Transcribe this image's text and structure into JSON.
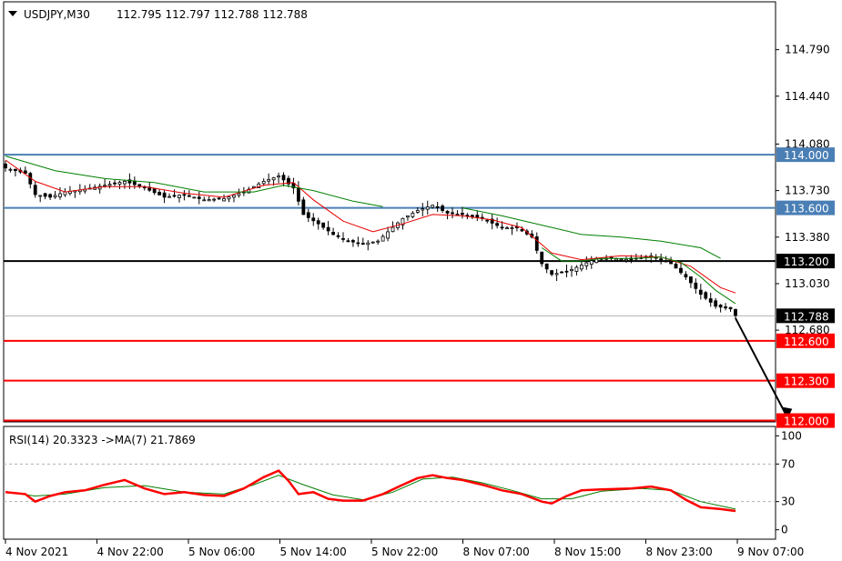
{
  "header": {
    "symbol": "USDJPY,M30",
    "ohlc": "112.795 112.797 112.788 112.788",
    "dropdown_icon": "triangle-down-icon"
  },
  "colors": {
    "background": "#ffffff",
    "candle": "#000000",
    "ma_fast": "#e60000",
    "ma_slow": "#008000",
    "support": "#ff0000",
    "resistance": "#4a7fb5",
    "pivot": "#000000",
    "rsi": "#ff0000",
    "rsi_ma": "#008000",
    "current_price_line": "#b0b0b0"
  },
  "chart_data": [
    {
      "type": "candlestick",
      "title": "USDJPY,M30",
      "x_ticks": [
        "4 Nov 2021",
        "4 Nov 22:00",
        "5 Nov 06:00",
        "5 Nov 14:00",
        "5 Nov 22:00",
        "8 Nov 07:00",
        "8 Nov 15:00",
        "8 Nov 23:00",
        "9 Nov 07:00"
      ],
      "y_ticks": [
        "114.790",
        "114.440",
        "114.080",
        "113.730",
        "113.380",
        "113.030",
        "112.680"
      ],
      "ylim": [
        111.99,
        115.15
      ],
      "current_price": {
        "value": 112.788,
        "label": "112.788"
      },
      "levels": [
        {
          "value": 114.0,
          "label": "114.000",
          "kind": "resistance"
        },
        {
          "value": 113.6,
          "label": "113.600",
          "kind": "resistance"
        },
        {
          "value": 113.2,
          "label": "113.200",
          "kind": "pivot"
        },
        {
          "value": 112.6,
          "label": "112.600",
          "kind": "support"
        },
        {
          "value": 112.3,
          "label": "112.300",
          "kind": "support"
        },
        {
          "value": 112.0,
          "label": "112.000",
          "kind": "support"
        }
      ],
      "price_path": [
        [
          0,
          113.9
        ],
        [
          4,
          113.86
        ],
        [
          6,
          113.7
        ],
        [
          9,
          113.68
        ],
        [
          12,
          113.72
        ],
        [
          16,
          113.74
        ],
        [
          20,
          113.77
        ],
        [
          24,
          113.8
        ],
        [
          28,
          113.75
        ],
        [
          32,
          113.68
        ],
        [
          36,
          113.7
        ],
        [
          40,
          113.66
        ],
        [
          44,
          113.67
        ],
        [
          48,
          113.72
        ],
        [
          52,
          113.8
        ],
        [
          55,
          113.84
        ],
        [
          58,
          113.75
        ],
        [
          60,
          113.55
        ],
        [
          63,
          113.48
        ],
        [
          66,
          113.4
        ],
        [
          69,
          113.35
        ],
        [
          72,
          113.33
        ],
        [
          75,
          113.35
        ],
        [
          77,
          113.42
        ],
        [
          80,
          113.52
        ],
        [
          83,
          113.58
        ],
        [
          86,
          113.62
        ],
        [
          89,
          113.56
        ],
        [
          92,
          113.55
        ],
        [
          96,
          113.52
        ],
        [
          100,
          113.45
        ],
        [
          103,
          113.45
        ],
        [
          106,
          113.38
        ],
        [
          108,
          113.18
        ],
        [
          110,
          113.1
        ],
        [
          113,
          113.12
        ],
        [
          116,
          113.17
        ],
        [
          119,
          113.22
        ],
        [
          122,
          113.22
        ],
        [
          126,
          113.21
        ],
        [
          130,
          113.24
        ],
        [
          134,
          113.18
        ],
        [
          137,
          113.08
        ],
        [
          140,
          112.95
        ],
        [
          143,
          112.86
        ],
        [
          146,
          112.84
        ],
        [
          147,
          112.79
        ]
      ],
      "ma_fast_path": [
        [
          0,
          113.96
        ],
        [
          6,
          113.8
        ],
        [
          12,
          113.72
        ],
        [
          20,
          113.76
        ],
        [
          28,
          113.76
        ],
        [
          36,
          113.71
        ],
        [
          44,
          113.68
        ],
        [
          52,
          113.77
        ],
        [
          58,
          113.79
        ],
        [
          62,
          113.66
        ],
        [
          68,
          113.5
        ],
        [
          74,
          113.42
        ],
        [
          80,
          113.48
        ],
        [
          86,
          113.55
        ],
        [
          92,
          113.54
        ],
        [
          98,
          113.51
        ],
        [
          104,
          113.45
        ],
        [
          110,
          113.26
        ],
        [
          116,
          113.21
        ],
        [
          124,
          113.24
        ],
        [
          132,
          113.23
        ],
        [
          138,
          113.16
        ],
        [
          144,
          113.0
        ],
        [
          147,
          112.96
        ]
      ],
      "ma_slow_path": [
        [
          0,
          113.99
        ],
        [
          10,
          113.88
        ],
        [
          20,
          113.82
        ],
        [
          30,
          113.79
        ],
        [
          40,
          113.72
        ],
        [
          50,
          113.72
        ],
        [
          56,
          113.77
        ],
        [
          62,
          113.73
        ],
        [
          70,
          113.65
        ],
        [
          76,
          113.61
        ]
      ],
      "ma_slow_path_2": [
        [
          92,
          113.6
        ],
        [
          100,
          113.54
        ],
        [
          108,
          113.47
        ],
        [
          116,
          113.4
        ],
        [
          124,
          113.38
        ],
        [
          132,
          113.35
        ],
        [
          140,
          113.3
        ],
        [
          144,
          113.22
        ]
      ],
      "ma_green_short_path": [
        [
          108,
          113.3
        ],
        [
          112,
          113.2
        ],
        [
          116,
          113.2
        ],
        [
          120,
          113.22
        ],
        [
          126,
          113.22
        ],
        [
          132,
          113.23
        ],
        [
          136,
          113.19
        ],
        [
          140,
          113.08
        ],
        [
          143,
          112.98
        ],
        [
          147,
          112.88
        ]
      ],
      "arrow": {
        "from": [
          147,
          112.77
        ],
        "to": [
          152,
          112.02
        ]
      }
    },
    {
      "type": "line",
      "title": "RSI(14) 20.3323 ->MA(7) 21.7869",
      "y_ticks": [
        "100",
        "70",
        "30",
        "0"
      ],
      "ylim": [
        -10,
        110
      ],
      "ref_lines": [
        70,
        30
      ],
      "series": [
        {
          "name": "RSI(14)",
          "values": [
            [
              0,
              40
            ],
            [
              4,
              38
            ],
            [
              6,
              30
            ],
            [
              9,
              36
            ],
            [
              12,
              40
            ],
            [
              16,
              42
            ],
            [
              20,
              48
            ],
            [
              24,
              53
            ],
            [
              28,
              44
            ],
            [
              32,
              38
            ],
            [
              36,
              40
            ],
            [
              40,
              37
            ],
            [
              44,
              36
            ],
            [
              48,
              44
            ],
            [
              52,
              56
            ],
            [
              55,
              63
            ],
            [
              57,
              52
            ],
            [
              59,
              38
            ],
            [
              62,
              40
            ],
            [
              65,
              33
            ],
            [
              68,
              31
            ],
            [
              72,
              31
            ],
            [
              76,
              38
            ],
            [
              80,
              48
            ],
            [
              83,
              55
            ],
            [
              86,
              58
            ],
            [
              89,
              55
            ],
            [
              92,
              53
            ],
            [
              96,
              48
            ],
            [
              100,
              42
            ],
            [
              104,
              38
            ],
            [
              106,
              34
            ],
            [
              108,
              30
            ],
            [
              110,
              28
            ],
            [
              113,
              36
            ],
            [
              116,
              42
            ],
            [
              120,
              43
            ],
            [
              126,
              44
            ],
            [
              130,
              46
            ],
            [
              134,
              42
            ],
            [
              137,
              32
            ],
            [
              140,
              24
            ],
            [
              144,
              22
            ],
            [
              147,
              20
            ]
          ]
        },
        {
          "name": "MA(7)",
          "values": [
            [
              0,
              40
            ],
            [
              6,
              36
            ],
            [
              12,
              38
            ],
            [
              20,
              45
            ],
            [
              28,
              47
            ],
            [
              36,
              40
            ],
            [
              44,
              38
            ],
            [
              50,
              48
            ],
            [
              55,
              58
            ],
            [
              60,
              48
            ],
            [
              66,
              37
            ],
            [
              72,
              32
            ],
            [
              78,
              40
            ],
            [
              84,
              54
            ],
            [
              90,
              56
            ],
            [
              96,
              50
            ],
            [
              102,
              42
            ],
            [
              108,
              33
            ],
            [
              114,
              33
            ],
            [
              120,
              41
            ],
            [
              128,
              44
            ],
            [
              134,
              42
            ],
            [
              140,
              30
            ],
            [
              147,
              22
            ]
          ]
        }
      ]
    }
  ]
}
